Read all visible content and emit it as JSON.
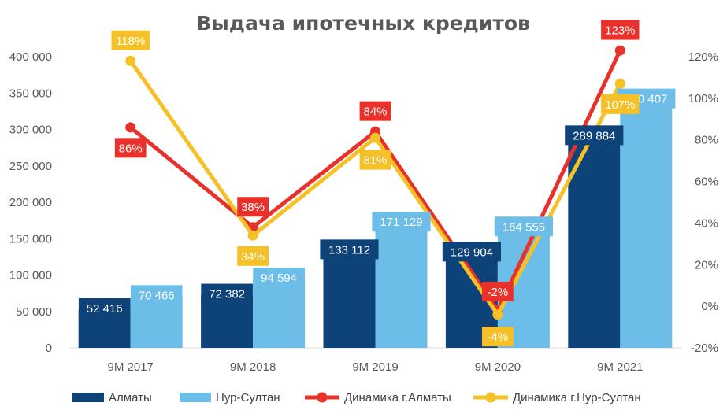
{
  "chart_data": {
    "type": "bar",
    "title": "Выдача ипотечных кредитов",
    "categories": [
      "9М 2017",
      "9М 2018",
      "9М 2019",
      "9М 2020",
      "9М 2021"
    ],
    "series": [
      {
        "name": "Алматы",
        "kind": "bar",
        "axis": "left",
        "color": "#0d4378",
        "label_bg": "#0d4378",
        "label_fg": "#ffffff",
        "values": [
          52416,
          72382,
          133112,
          129904,
          289884
        ],
        "labels": [
          "52 416",
          "72 382",
          "133 112",
          "129 904",
          "289 884"
        ]
      },
      {
        "name": "Нур-Султан",
        "kind": "bar",
        "axis": "left",
        "color": "#6cbde8",
        "label_bg": "#6cbde8",
        "label_fg": "#ffffff",
        "values": [
          70466,
          94594,
          171129,
          164555,
          340407
        ],
        "labels": [
          "70 466",
          "94 594",
          "171 129",
          "164 555",
          "340 407"
        ]
      },
      {
        "name": "Динамика г.Алматы",
        "kind": "line",
        "axis": "right",
        "color": "#e8312a",
        "label_bg": "#e8312a",
        "label_fg": "#ffffff",
        "values": [
          86,
          38,
          84,
          -2,
          123
        ],
        "labels": [
          "86%",
          "38%",
          "84%",
          "-2%",
          "123%"
        ]
      },
      {
        "name": "Динамика г.Нур-Султан",
        "kind": "line",
        "axis": "right",
        "color": "#f6c027",
        "label_bg": "#f6c027",
        "label_fg": "#ffffff",
        "values": [
          118,
          34,
          81,
          -4,
          107
        ],
        "labels": [
          "118%",
          "34%",
          "81%",
          "-4%",
          "107%"
        ]
      }
    ],
    "y_left": {
      "min": 0,
      "max": 400000,
      "step": 50000,
      "ticks": [
        "0",
        "50 000",
        "100 000",
        "150 000",
        "200 000",
        "250 000",
        "300 000",
        "350 000",
        "400 000"
      ]
    },
    "y_right": {
      "min": -20,
      "max": 120,
      "step": 20,
      "ticks": [
        "-20%",
        "0%",
        "20%",
        "40%",
        "60%",
        "80%",
        "100%",
        "120%"
      ]
    },
    "grid": false,
    "legend_position": "bottom"
  }
}
